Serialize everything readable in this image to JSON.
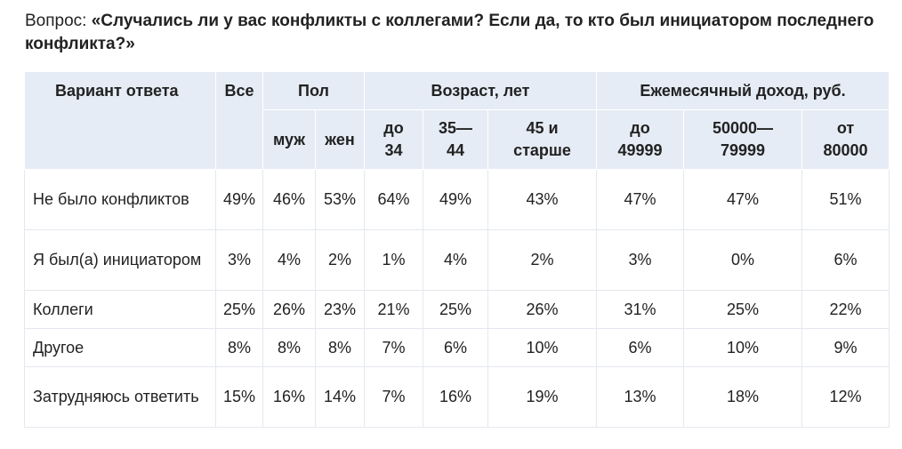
{
  "question": {
    "label": "Вопрос: ",
    "text": "«Случались ли у вас конфликты с коллегами? Если да, то кто был инициатором последнего конфликта?»"
  },
  "table": {
    "header_top": {
      "answer": "Вариант ответа",
      "all": "Все",
      "gender": "Пол",
      "age": "Возраст, лет",
      "income": "Ежемесячный доход, руб."
    },
    "header_sub": [
      "муж",
      "жен",
      "до 34",
      "35—44",
      "45 и старше",
      "до 49999",
      "50000—79999",
      "от 80000"
    ],
    "rows": [
      {
        "answer": "Не было конфликтов",
        "values": [
          "49%",
          "46%",
          "53%",
          "64%",
          "49%",
          "43%",
          "47%",
          "47%",
          "51%"
        ]
      },
      {
        "answer": "Я был(а) инициатором",
        "values": [
          "3%",
          "4%",
          "2%",
          "1%",
          "4%",
          "2%",
          "3%",
          "0%",
          "6%"
        ]
      },
      {
        "answer": "Коллеги",
        "values": [
          "25%",
          "26%",
          "23%",
          "21%",
          "25%",
          "26%",
          "31%",
          "25%",
          "22%"
        ]
      },
      {
        "answer": "Другое",
        "values": [
          "8%",
          "8%",
          "8%",
          "7%",
          "6%",
          "10%",
          "6%",
          "10%",
          "9%"
        ]
      },
      {
        "answer": "Затрудняюсь ответить",
        "values": [
          "15%",
          "16%",
          "14%",
          "7%",
          "16%",
          "19%",
          "13%",
          "18%",
          "12%"
        ]
      }
    ]
  }
}
